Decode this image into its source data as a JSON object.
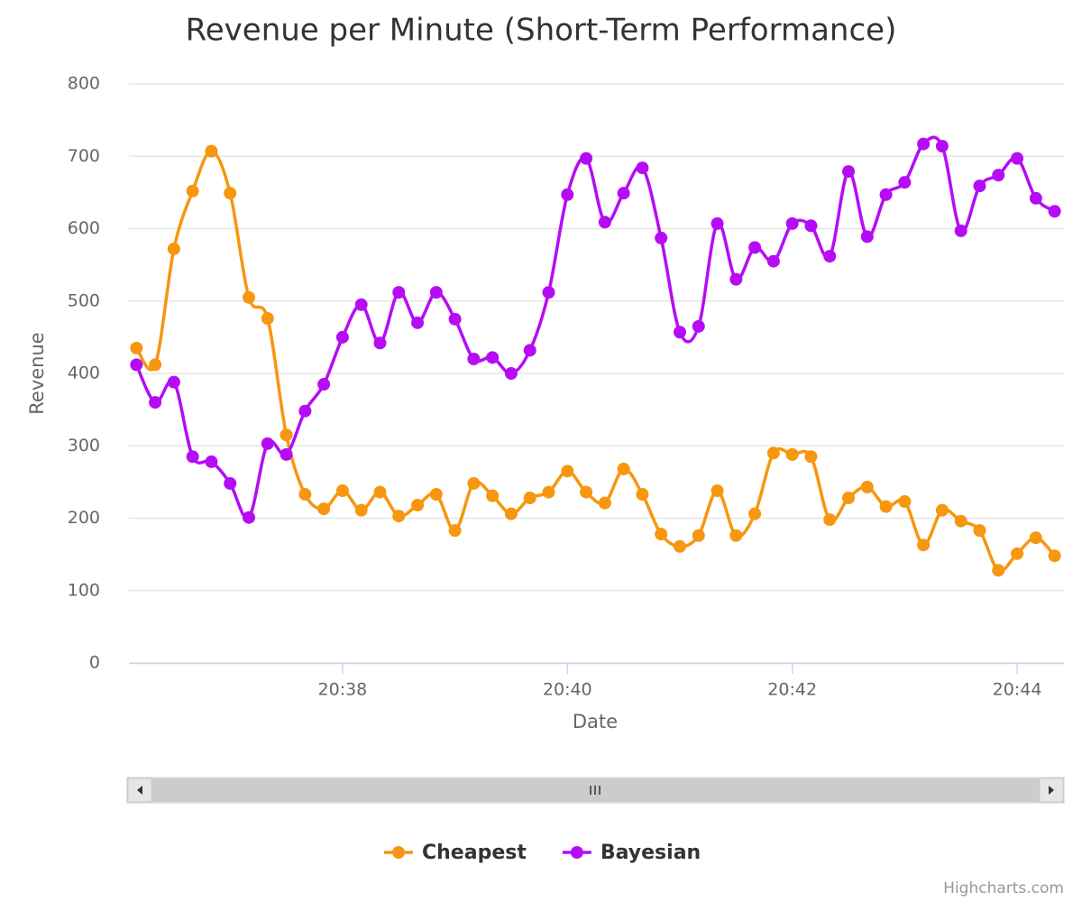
{
  "chart_data": {
    "type": "line",
    "title": "Revenue per Minute (Short-Term Performance)",
    "x_label": "Date",
    "y_label": "Revenue",
    "x": [
      "20:36:10",
      "20:36:20",
      "20:36:30",
      "20:36:40",
      "20:36:50",
      "20:37:00",
      "20:37:10",
      "20:37:20",
      "20:37:30",
      "20:37:40",
      "20:37:50",
      "20:38:00",
      "20:38:10",
      "20:38:20",
      "20:38:30",
      "20:38:40",
      "20:38:50",
      "20:39:00",
      "20:39:10",
      "20:39:20",
      "20:39:30",
      "20:39:40",
      "20:39:50",
      "20:40:00",
      "20:40:10",
      "20:40:20",
      "20:40:30",
      "20:40:40",
      "20:40:50",
      "20:41:00",
      "20:41:10",
      "20:41:20",
      "20:41:30",
      "20:41:40",
      "20:41:50",
      "20:42:00",
      "20:42:10",
      "20:42:20",
      "20:42:30",
      "20:42:40",
      "20:42:50",
      "20:43:00",
      "20:43:10",
      "20:43:20",
      "20:43:30",
      "20:43:40",
      "20:43:50",
      "20:44:00",
      "20:44:10",
      "20:44:20"
    ],
    "xlim": [
      "20:36:06",
      "20:44:25"
    ],
    "xticks": [
      {
        "value": "20:38:00",
        "label": "20:38"
      },
      {
        "value": "20:40:00",
        "label": "20:40"
      },
      {
        "value": "20:42:00",
        "label": "20:42"
      },
      {
        "value": "20:44:00",
        "label": "20:44"
      }
    ],
    "ylim": [
      0,
      800
    ],
    "yticks": [
      0,
      100,
      200,
      300,
      400,
      500,
      600,
      700,
      800
    ],
    "grid": true,
    "legend": "bottom",
    "series": [
      {
        "name": "Cheapest",
        "color": "#f7960f",
        "values": [
          435,
          412,
          572,
          652,
          707,
          649,
          505,
          476,
          315,
          233,
          213,
          238,
          211,
          236,
          203,
          218,
          233,
          183,
          248,
          231,
          206,
          228,
          236,
          265,
          236,
          221,
          268,
          233,
          178,
          161,
          176,
          238,
          176,
          206,
          290,
          288,
          285,
          198,
          228,
          243,
          216,
          223,
          163,
          211,
          196,
          183,
          128,
          151,
          173,
          148
        ]
      },
      {
        "name": "Bayesian",
        "color": "#b60cf5",
        "values": [
          412,
          360,
          388,
          285,
          278,
          248,
          201,
          303,
          288,
          348,
          385,
          450,
          495,
          442,
          512,
          470,
          512,
          475,
          420,
          422,
          400,
          432,
          512,
          647,
          697,
          609,
          649,
          684,
          587,
          457,
          465,
          607,
          530,
          574,
          555,
          607,
          604,
          562,
          679,
          589,
          647,
          664,
          717,
          714,
          597,
          659,
          674,
          697,
          642,
          624
        ]
      }
    ],
    "credits": "Highcharts.com"
  }
}
